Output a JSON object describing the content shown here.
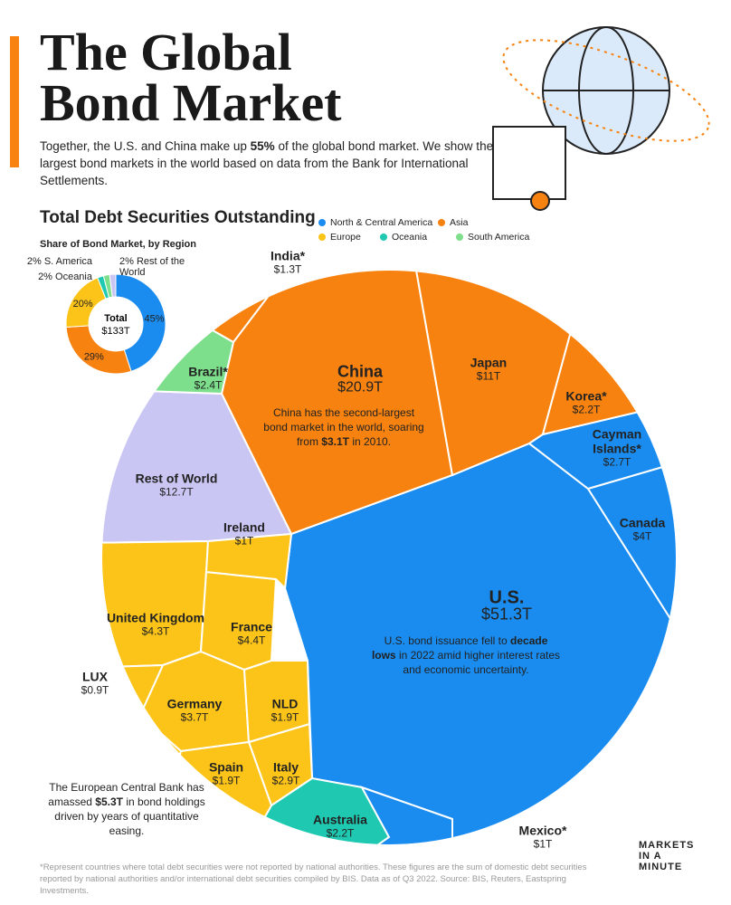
{
  "header": {
    "title": "The Global Bond Market",
    "subtitle": [
      {
        "text": "Together, the U.S. and China make up ",
        "bold": false
      },
      {
        "text": "55%",
        "bold": true
      },
      {
        "text": " of the global bond market. We show the largest bond markets in the world based on data from the Bank for International Settlements.",
        "bold": false
      }
    ]
  },
  "chart_data": [
    {
      "type": "pie",
      "title": "Share of Bond Market, by Region",
      "values": [
        45,
        29,
        20,
        2,
        2,
        2
      ],
      "value_labels": [
        "45%",
        "29%",
        "20%",
        "2% Oceania",
        "2% S. America",
        "2% Rest of the World"
      ],
      "colors": [
        "#1a8cf0",
        "#f7820f",
        "#fcc419",
        "#1fc9b1",
        "#7ddf8b",
        "#c9c6f3"
      ],
      "total": 133,
      "total_name": "Total",
      "total_label": "$133T"
    },
    {
      "type": "voronoi",
      "title": "Total Debt Securities Outstanding",
      "legend": [
        {
          "name": "North & Central America",
          "color": "#1a8cf0"
        },
        {
          "name": "Asia",
          "color": "#f7820f"
        },
        {
          "name": "Europe",
          "color": "#fcc419"
        },
        {
          "name": "Oceania",
          "color": "#1fc9b1"
        },
        {
          "name": "South America",
          "color": "#7ddf8b"
        }
      ],
      "categories": [
        "U.S.",
        "China",
        "Rest of World",
        "Japan",
        "United Kingdom",
        "France",
        "Canada",
        "Germany",
        "Italy",
        "Cayman Islands*",
        "Brazil*",
        "Korea*",
        "Australia",
        "NLD",
        "Spain",
        "India*",
        "Ireland",
        "Mexico*",
        "LUX"
      ],
      "values": [
        51.3,
        20.9,
        12.7,
        11,
        4.3,
        4.4,
        4,
        3.7,
        2.9,
        2.7,
        2.4,
        2.2,
        2.2,
        1.9,
        1.9,
        1.3,
        1,
        1,
        0.9
      ],
      "value_labels": [
        "$51.3T",
        "$20.9T",
        "$12.7T",
        "$11T",
        "$4.3T",
        "$4.4T",
        "$4T",
        "$3.7T",
        "$2.9T",
        "$2.7T",
        "$2.4T",
        "$2.2T",
        "$2.2T",
        "$1.9T",
        "$1.9T",
        "$1.3T",
        "$1T",
        "$1T",
        "$0.9T"
      ],
      "colors": [
        "#1a8cf0",
        "#f7820f",
        "#c9c6f3",
        "#f7820f",
        "#fcc419",
        "#fcc419",
        "#1a8cf0",
        "#fcc419",
        "#fcc419",
        "#1a8cf0",
        "#7ddf8b",
        "#f7820f",
        "#1fc9b1",
        "#fcc419",
        "#fcc419",
        "#f7820f",
        "#fcc419",
        "#1a8cf0",
        "#fcc419"
      ]
    }
  ],
  "annotations": [
    [
      {
        "text": "China has the second-largest bond market in the world, soaring from ",
        "bold": false
      },
      {
        "text": "$3.1T",
        "bold": true
      },
      {
        "text": " in 2010.",
        "bold": false
      }
    ],
    [
      {
        "text": "U.S. bond issuance fell to ",
        "bold": false
      },
      {
        "text": "decade lows",
        "bold": true
      },
      {
        "text": " in 2022 amid higher interest rates and economic uncertainty.",
        "bold": false
      }
    ],
    [
      {
        "text": "The European Central Bank has amassed ",
        "bold": false
      },
      {
        "text": "$5.3T",
        "bold": true
      },
      {
        "text": " in bond holdings driven by years of quantitative easing.",
        "bold": false
      }
    ]
  ],
  "footnote": "*Represent countries where total debt securities were not reported by national authorities. These figures are the sum of domestic debt securities reported by national authorities and/or international debt securities compiled by BIS. Data as of Q3 2022. Source: BIS, Reuters, Eastspring Investments.",
  "logo": [
    "MARKETS",
    "IN A",
    "MINUTE"
  ]
}
